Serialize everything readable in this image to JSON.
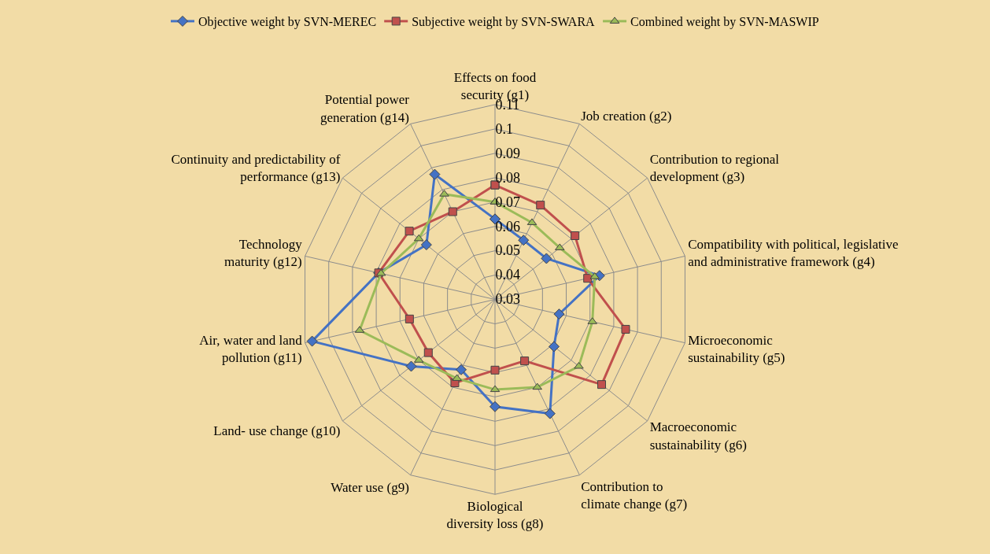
{
  "chart_data": {
    "type": "radar",
    "categories": [
      "Effects on food security (g1)",
      "Job creation (g2)",
      "Contribution to regional development (g3)",
      "Compatibility with political, legislative\nand administrative framework (g4)",
      "Microeconomic sustainability (g5)",
      "Macroeconomic sustainability (g6)",
      "Contribution to climate change (g7)",
      "Biological diversity loss (g8)",
      "Water use (g9)",
      "Land- use change (g10)",
      "Air, water and land pollution (g11)",
      "Technology maturity (g12)",
      "Continuity and predictability of\nperformance (g13)",
      "Potential power generation (g14)"
    ],
    "series": [
      {
        "name": "Objective weight by SVN-MEREC",
        "color": "#4472c4",
        "marker": "diamond",
        "values": [
          0.063,
          0.057,
          0.057,
          0.074,
          0.057,
          0.061,
          0.082,
          0.074,
          0.062,
          0.074,
          0.107,
          0.079,
          0.066,
          0.087
        ]
      },
      {
        "name": "Subjective weight by SVN-SWARA",
        "color": "#c0504d",
        "marker": "square",
        "values": [
          0.077,
          0.073,
          0.072,
          0.069,
          0.085,
          0.086,
          0.058,
          0.059,
          0.068,
          0.065,
          0.066,
          0.079,
          0.075,
          0.07
        ]
      },
      {
        "name": "Combined weight by SVN-MASWIP",
        "color": "#9bbb59",
        "marker": "triangle",
        "values": [
          0.07,
          0.065,
          0.064,
          0.072,
          0.071,
          0.074,
          0.07,
          0.067,
          0.066,
          0.07,
          0.087,
          0.078,
          0.07,
          0.078
        ]
      }
    ],
    "ylim": [
      0.03,
      0.11
    ],
    "yticks": [
      0.03,
      0.04,
      0.05,
      0.06,
      0.07,
      0.08,
      0.09,
      0.1,
      0.11
    ],
    "grid": true,
    "legend": "top"
  }
}
